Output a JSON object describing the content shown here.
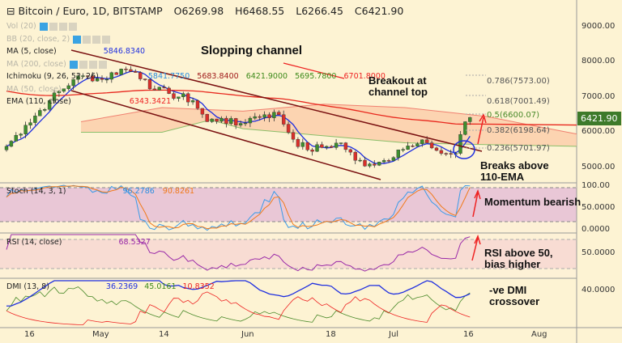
{
  "header": {
    "symbol": "Bitcoin / Euro, 1D, BITSTAMP",
    "open": "O6269.98",
    "high": "H6468.55",
    "low": "L6266.45",
    "close": "C6421.90"
  },
  "legends": {
    "vol": "Vol (20)",
    "bb": "BB (20, close, 2)",
    "ma5": "MA (5, close)",
    "ma5_val": "5846.8340",
    "ma200": "MA (200, close)",
    "ichimoku": "Ichimoku (9, 26, 52, 26)",
    "ichi_vals": [
      "5841.7750",
      "5683.8400",
      "6421.9000",
      "5695.7800",
      "6701.8000"
    ],
    "ma50": "MA (50, close)",
    "ema": "EMA (110, close)",
    "ema_val": "6343.3421",
    "stoch": "Stoch (14, 3, 1)",
    "stoch_vals": [
      "96.2786",
      "90.8261"
    ],
    "rsi": "RSI (14, close)",
    "rsi_val": "68.5327",
    "dmi": "DMI (13, 8)",
    "dmi_vals": [
      "36.2369",
      "45.0161",
      "10.8352"
    ]
  },
  "annotations": {
    "channel": "Slopping channel",
    "breakout1": "Breakout at",
    "breakout2": "channel top",
    "ema1": "Breaks above",
    "ema2": "110-EMA",
    "momentum": "Momentum bearish",
    "rsi1": "RSI above 50,",
    "rsi2": "bias higher",
    "dmi1": "-ve DMI",
    "dmi2": "crossover"
  },
  "fib": [
    "0.786(7573.00)",
    "0.618(7001.49)",
    "0.5(6600.07)",
    "0.382(6198.64)",
    "0.236(5701.97)"
  ],
  "last_price": "6421.90",
  "colors": {
    "up": "#3e8e2e",
    "down": "#d9302b",
    "ma": "#1f2fe0",
    "ema": "#e8281e",
    "accent": "#3aa3e3"
  },
  "chart_data": {
    "type": "candlestick",
    "title": "Bitcoin / Euro, 1D, BITSTAMP",
    "start_date": "2018-04-11",
    "close_keypoints": [
      [
        0,
        5600
      ],
      [
        4,
        6200
      ],
      [
        9,
        6900
      ],
      [
        14,
        7500
      ],
      [
        17,
        7600
      ],
      [
        20,
        7500
      ],
      [
        24,
        7800
      ],
      [
        27,
        7700
      ],
      [
        29,
        7500
      ],
      [
        31,
        7200
      ],
      [
        34,
        7100
      ],
      [
        39,
        6900
      ],
      [
        42,
        6300
      ],
      [
        45,
        6400
      ],
      [
        48,
        6200
      ],
      [
        51,
        6400
      ],
      [
        54,
        6500
      ],
      [
        57,
        6500
      ],
      [
        60,
        5800
      ],
      [
        63,
        5500
      ],
      [
        67,
        5600
      ],
      [
        70,
        5700
      ],
      [
        73,
        5200
      ],
      [
        76,
        5100
      ],
      [
        79,
        5200
      ],
      [
        82,
        5500
      ],
      [
        85,
        5600
      ],
      [
        88,
        5700
      ],
      [
        91,
        5400
      ],
      [
        94,
        5400
      ],
      [
        96,
        6300
      ],
      [
        97,
        6421.9
      ]
    ],
    "price_axis": [
      "9000.00",
      "8000.00",
      "7000.00",
      "6000.00",
      "5000.00"
    ],
    "stoch_axis": [
      "100.00",
      "50.0000",
      "0.0000"
    ],
    "rsi_axis": [
      "50.0000"
    ],
    "dmi_axis": [
      "40.0000"
    ],
    "x_labels": [
      "16",
      "May",
      "14",
      "Jun",
      "18",
      "Jul",
      "16",
      "Aug"
    ],
    "ylim": [
      4700,
      9200
    ]
  }
}
